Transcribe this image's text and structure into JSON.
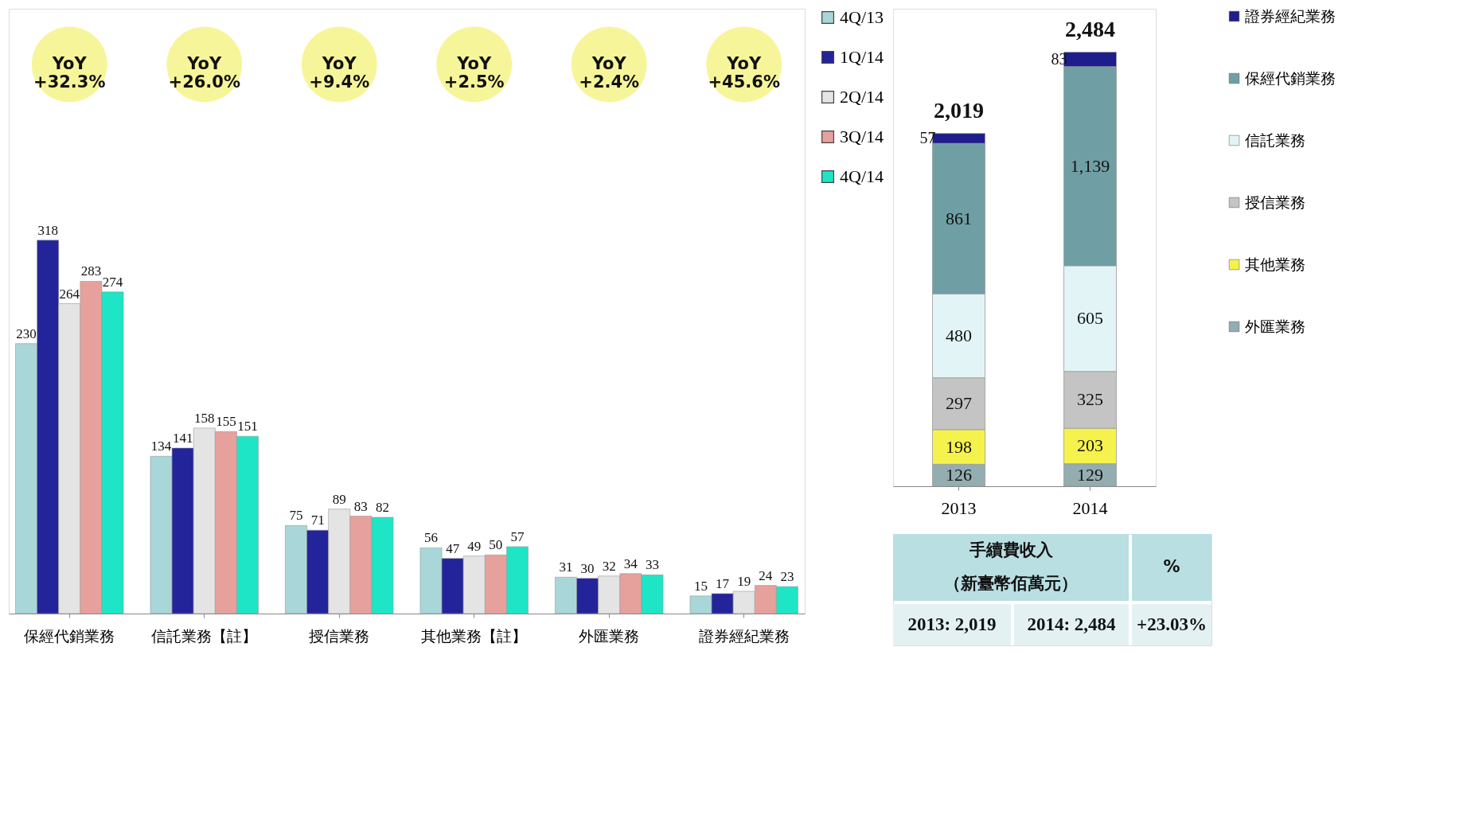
{
  "chart_data": [
    {
      "type": "bar",
      "categories": [
        "保經代銷業務",
        "信託業務【註】",
        "授信業務",
        "其他業務【註】",
        "外匯業務",
        "證券經紀業務"
      ],
      "series": [
        {
          "name": "4Q/13",
          "color": "#a9d6d8",
          "values": [
            230,
            134,
            75,
            56,
            31,
            15
          ]
        },
        {
          "name": "1Q/14",
          "color": "#23239a",
          "values": [
            318,
            141,
            71,
            47,
            30,
            17
          ]
        },
        {
          "name": "2Q/14",
          "color": "#e4e4e4",
          "values": [
            264,
            158,
            89,
            49,
            32,
            19
          ]
        },
        {
          "name": "3Q/14",
          "color": "#e6a19d",
          "values": [
            283,
            155,
            83,
            50,
            34,
            24
          ]
        },
        {
          "name": "4Q/14",
          "color": "#1de5c6",
          "values": [
            274,
            151,
            82,
            57,
            33,
            23
          ]
        }
      ],
      "data_labels": true,
      "legend": "right",
      "grid": false,
      "annotations": [
        "YoY +32.3%",
        "YoY +26.0%",
        "YoY +9.4%",
        "YoY +2.5%",
        "YoY +2.4%",
        "YoY +45.6%"
      ]
    },
    {
      "type": "bar",
      "stacked": true,
      "categories": [
        "2013",
        "2014"
      ],
      "series": [
        {
          "name": "外匯業務",
          "color": "#94adb1",
          "values": [
            126,
            129
          ]
        },
        {
          "name": "其他業務",
          "color": "#f5f24e",
          "values": [
            198,
            203
          ]
        },
        {
          "name": "授信業務",
          "color": "#c4c4c4",
          "values": [
            297,
            325
          ]
        },
        {
          "name": "信託業務",
          "color": "#e2f4f6",
          "values": [
            480,
            605
          ]
        },
        {
          "name": "保經代銷業務",
          "color": "#6f9fa4",
          "values": [
            861,
            1139
          ],
          "value_labels": [
            "861",
            "1,139"
          ]
        },
        {
          "name": "證券經紀業務",
          "color": "#1d1d8c",
          "values": [
            57,
            83
          ]
        }
      ],
      "data_labels": true,
      "totals": [
        "2,019",
        "2,484"
      ],
      "legend": "right",
      "grid": false
    },
    {
      "type": "other",
      "annotations": [
        "手續費收入",
        "（新臺幣佰萬元）",
        "%",
        "2013: 2,019",
        "2014: 2,484",
        "+23.03%"
      ]
    }
  ]
}
